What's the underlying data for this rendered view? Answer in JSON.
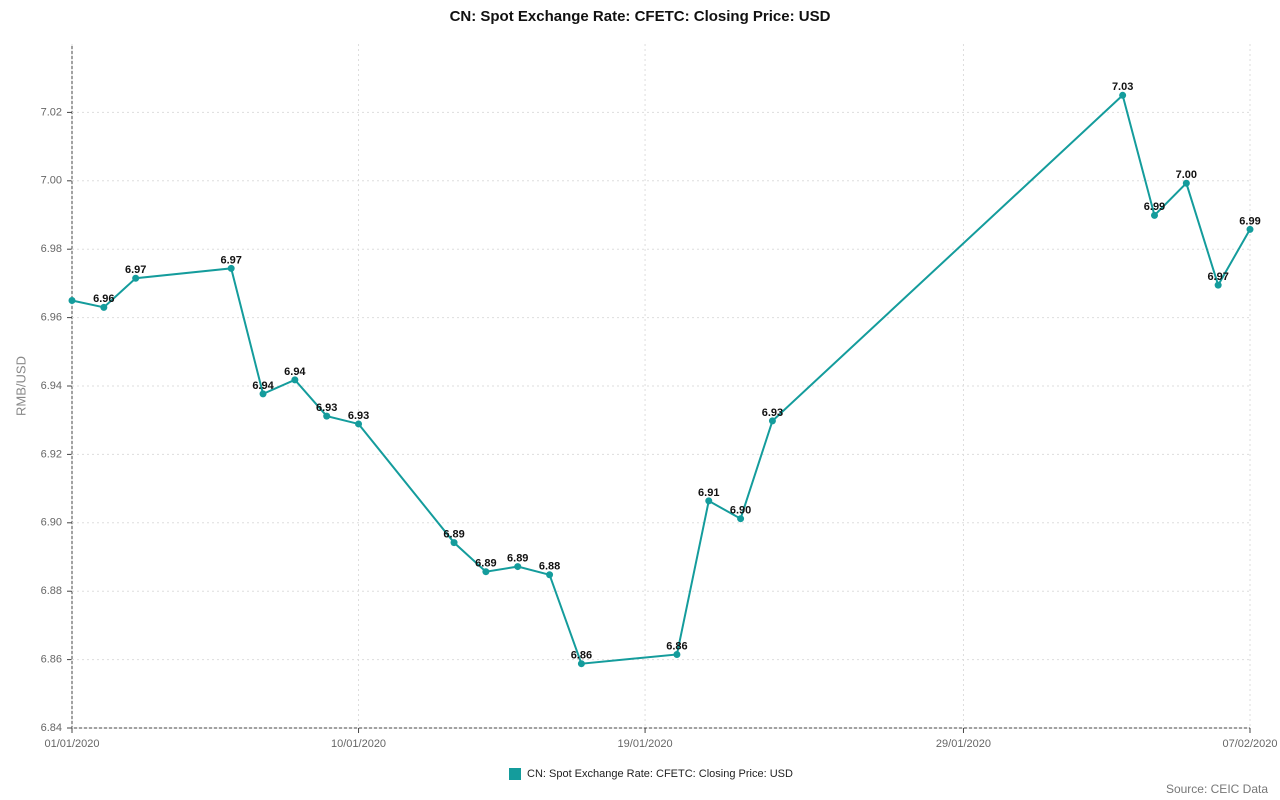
{
  "chart_data": {
    "type": "line",
    "title": "CN: Spot Exchange Rate: CFETC: Closing Price: USD",
    "y_label": "RMB/USD",
    "source": "Source: CEIC Data",
    "x": [
      "01/01/2020",
      "02/01/2020",
      "03/01/2020",
      "06/01/2020",
      "07/01/2020",
      "08/01/2020",
      "09/01/2020",
      "10/01/2020",
      "13/01/2020",
      "14/01/2020",
      "15/01/2020",
      "16/01/2020",
      "17/01/2020",
      "20/01/2020",
      "21/01/2020",
      "22/01/2020",
      "23/01/2020",
      "03/02/2020",
      "04/02/2020",
      "05/02/2020",
      "06/02/2020",
      "07/02/2020"
    ],
    "series": [
      {
        "name": "CN: Spot Exchange Rate: CFETC: Closing Price: USD",
        "color": "#149c9c",
        "values": [
          6.965,
          6.963,
          6.9715,
          6.9744,
          6.9377,
          6.9418,
          6.9312,
          6.9289,
          6.8942,
          6.8857,
          6.8872,
          6.8848,
          6.8588,
          6.8615,
          6.9064,
          6.9012,
          6.9298,
          7.025,
          6.9899,
          6.9993,
          6.9695,
          6.9858
        ],
        "value_labels": [
          null,
          "6.96",
          "6.97",
          "6.97",
          "6.94",
          "6.94",
          "6.93",
          "6.93",
          "6.89",
          "6.89",
          "6.89",
          "6.88",
          "6.86",
          "6.86",
          "6.91",
          "6.90",
          "6.93",
          "7.03",
          "6.99",
          "7.00",
          "6.97",
          "6.99"
        ]
      }
    ],
    "xlim": [
      "01/01/2020",
      "07/02/2020"
    ],
    "xticks": [
      "01/01/2020",
      "10/01/2020",
      "19/01/2020",
      "29/01/2020",
      "07/02/2020"
    ],
    "ylim": [
      6.84,
      7.04
    ],
    "yticks": [
      6.84,
      6.86,
      6.88,
      {
        "value": 6.9,
        "label": "6.90"
      },
      6.92,
      6.94,
      6.96,
      6.98,
      {
        "value": 7,
        "label": "7.00"
      },
      7.02
    ],
    "grid": true
  }
}
